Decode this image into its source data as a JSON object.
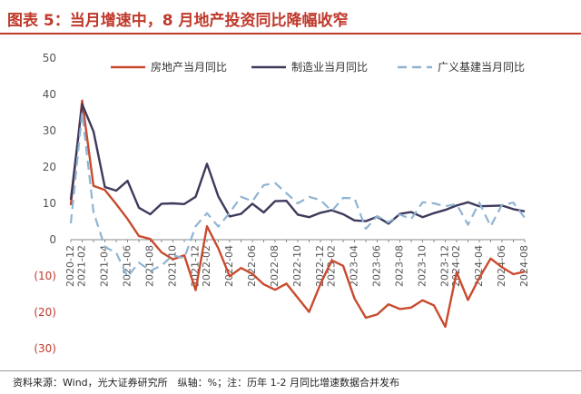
{
  "figure": {
    "title": "图表 5：当月增速中，8 月地产投资同比降幅收窄",
    "footnote": "资料来源：Wind，光大证券研究所　纵轴：%；注：历年 1-2 月同比增速数据合并发布"
  },
  "colors": {
    "title": "#c0392b",
    "series": [
      "#c94a2e",
      "#3d3a5c",
      "#8fb4d2"
    ],
    "negative_tick": "#c0392b",
    "tick": "#555555"
  },
  "chart_data": {
    "type": "line",
    "title": "",
    "xlabel": "",
    "ylabel": "",
    "ylim": [
      -30,
      50
    ],
    "yticks": [
      50,
      40,
      30,
      20,
      10,
      0,
      -10,
      -20,
      -30
    ],
    "ytick_labels": [
      "50",
      "40",
      "30",
      "20",
      "10",
      "0",
      "(10)",
      "(20)",
      "(30)"
    ],
    "x": [
      "2020-12",
      "2021-02",
      "2021-03",
      "2021-04",
      "2021-05",
      "2021-06",
      "2021-07",
      "2021-08",
      "2021-09",
      "2021-10",
      "2021-11",
      "2021-12",
      "2022-02",
      "2022-03",
      "2022-04",
      "2022-05",
      "2022-06",
      "2022-07",
      "2022-08",
      "2022-09",
      "2022-10",
      "2022-11",
      "2022-12",
      "2023-02",
      "2023-03",
      "2023-04",
      "2023-05",
      "2023-06",
      "2023-07",
      "2023-08",
      "2023-09",
      "2023-10",
      "2023-11",
      "2023-12",
      "2024-02",
      "2024-03",
      "2024-04",
      "2024-05",
      "2024-06",
      "2024-07",
      "2024-08"
    ],
    "xtick_labels": [
      "2020-12",
      "2021-02",
      "2021-04",
      "2021-06",
      "2021-08",
      "2021-10",
      "2021-12",
      "2022-02",
      "2022-04",
      "2022-06",
      "2022-08",
      "2022-10",
      "2022-12",
      "2023-02",
      "2023-04",
      "2023-06",
      "2023-08",
      "2023-10",
      "2023-12",
      "2024-02",
      "2024-04",
      "2024-06",
      "2024-08"
    ],
    "legend_position": "top",
    "series": [
      {
        "name": "房地产当月同比",
        "style": "solid",
        "values": [
          9.5,
          38.3,
          14.8,
          13.7,
          9.8,
          5.7,
          1.0,
          0.2,
          -3.5,
          -5.4,
          -4.3,
          -13.9,
          3.7,
          -2.4,
          -10.1,
          -7.8,
          -9.4,
          -12.3,
          -13.8,
          -12.1,
          -16.0,
          -19.9,
          -12.2,
          -5.7,
          -7.2,
          -16.2,
          -21.5,
          -20.6,
          -17.8,
          -19.1,
          -18.7,
          -16.7,
          -18.1,
          -24.0,
          -9.0,
          -16.6,
          -10.5,
          -5.2,
          -7.6,
          -9.5,
          -8.8
        ]
      },
      {
        "name": "制造业当月同比",
        "style": "solid",
        "values": [
          11.0,
          37.3,
          29.8,
          14.5,
          13.5,
          16.2,
          8.8,
          7.0,
          9.9,
          10.0,
          9.8,
          11.8,
          20.9,
          11.9,
          6.4,
          7.1,
          9.9,
          7.5,
          10.6,
          10.7,
          6.9,
          6.2,
          7.4,
          8.1,
          7.0,
          5.3,
          5.1,
          6.3,
          4.4,
          7.1,
          7.6,
          6.2,
          7.3,
          8.2,
          9.4,
          10.3,
          9.2,
          9.3,
          9.4,
          8.4,
          7.8
        ]
      },
      {
        "name": "广义基建当月同比",
        "style": "dashed",
        "values": [
          4.5,
          35.0,
          7.6,
          -2.0,
          -3.6,
          -10.2,
          -6.3,
          -8.6,
          -7.1,
          -4.3,
          -5.1,
          3.7,
          7.3,
          3.6,
          7.4,
          11.8,
          10.6,
          15.0,
          15.6,
          12.8,
          10.0,
          11.8,
          10.9,
          7.9,
          11.5,
          11.4,
          3.0,
          6.5,
          4.8,
          6.9,
          5.7,
          10.3,
          10.0,
          9.2,
          9.8,
          4.1,
          10.2,
          3.7,
          9.6,
          10.2,
          6.0
        ]
      }
    ]
  }
}
